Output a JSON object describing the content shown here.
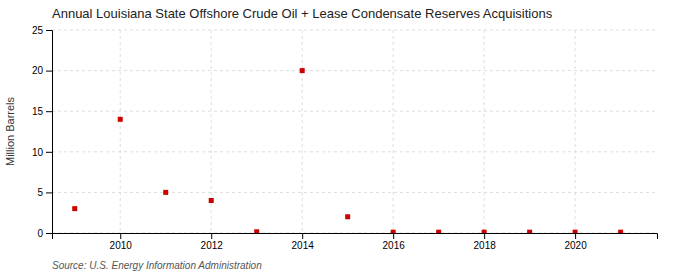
{
  "chart_data": {
    "type": "scatter",
    "title": "Annual Louisiana State Offshore Crude Oil + Lease Condensate Reserves Acquisitions",
    "y_label": "Million Barrels",
    "source": "Source: U.S. Energy Information Administration",
    "x": [
      2009,
      2010,
      2011,
      2012,
      2013,
      2014,
      2015,
      2016,
      2017,
      2018,
      2019,
      2020,
      2021
    ],
    "values": [
      3.0,
      14.0,
      5.0,
      4.0,
      0.15,
      20.0,
      2.0,
      0.1,
      0.1,
      0.1,
      0.1,
      0.1,
      0.1
    ],
    "color": "#cc0000",
    "marker": "square",
    "xlim": [
      2008.5,
      2021.8
    ],
    "ylim": [
      0,
      25
    ],
    "xticks": [
      2010,
      2012,
      2014,
      2016,
      2018,
      2020
    ],
    "yticks": [
      0,
      5,
      10,
      15,
      20,
      25
    ],
    "grid": true
  }
}
